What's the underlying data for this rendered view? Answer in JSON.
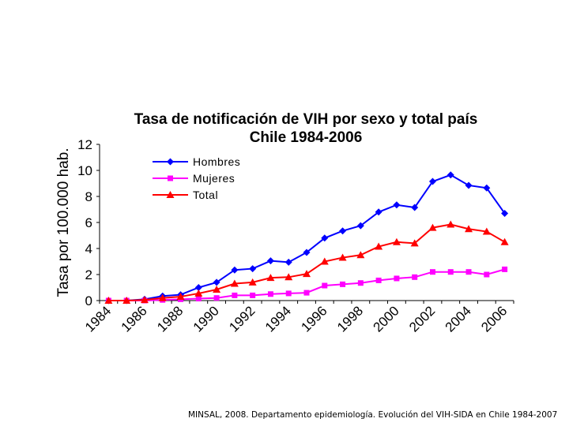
{
  "chart_data": {
    "type": "line",
    "title": "Tasa de notificación de VIH por sexo y total país",
    "subtitle": "Chile 1984-2006",
    "xlabel": "",
    "ylabel": "Tasa por 100.000 hab.",
    "x": [
      1984,
      1985,
      1986,
      1987,
      1988,
      1989,
      1990,
      1991,
      1992,
      1993,
      1994,
      1995,
      1996,
      1997,
      1998,
      1999,
      2000,
      2001,
      2002,
      2003,
      2004,
      2005,
      2006
    ],
    "xticks": [
      "1984",
      "1986",
      "1988",
      "1990",
      "1992",
      "1994",
      "1996",
      "1998",
      "2000",
      "2002",
      "2004",
      "2006"
    ],
    "yticks": [
      "0",
      "2",
      "4",
      "6",
      "8",
      "10",
      "12"
    ],
    "ylim": [
      0,
      12
    ],
    "grid": false,
    "legend_position": "top-left",
    "series": [
      {
        "name": "Hombres",
        "color": "#0000ff",
        "marker": "diamond",
        "values": [
          0.0,
          0.0,
          0.1,
          0.35,
          0.45,
          1.0,
          1.4,
          2.35,
          2.45,
          3.05,
          2.95,
          3.7,
          4.8,
          5.35,
          5.75,
          6.8,
          7.35,
          7.15,
          9.15,
          9.65,
          8.85,
          8.65,
          6.7
        ]
      },
      {
        "name": "Mujeres",
        "color": "#ff00ff",
        "marker": "square",
        "values": [
          0.0,
          0.0,
          0.0,
          0.05,
          0.1,
          0.15,
          0.2,
          0.4,
          0.4,
          0.5,
          0.55,
          0.6,
          1.15,
          1.25,
          1.35,
          1.55,
          1.7,
          1.8,
          2.2,
          2.2,
          2.2,
          2.0,
          2.4
        ]
      },
      {
        "name": "Total",
        "color": "#ff0000",
        "marker": "triangle",
        "values": [
          0.0,
          0.0,
          0.05,
          0.2,
          0.3,
          0.55,
          0.85,
          1.3,
          1.4,
          1.75,
          1.8,
          2.05,
          3.0,
          3.3,
          3.5,
          4.15,
          4.5,
          4.4,
          5.6,
          5.85,
          5.5,
          5.3,
          4.5
        ]
      }
    ]
  },
  "footer": {
    "source": "MINSAL, 2008. Departamento epidemiología. Evolución del VIH-SIDA en Chile 1984-2007"
  }
}
